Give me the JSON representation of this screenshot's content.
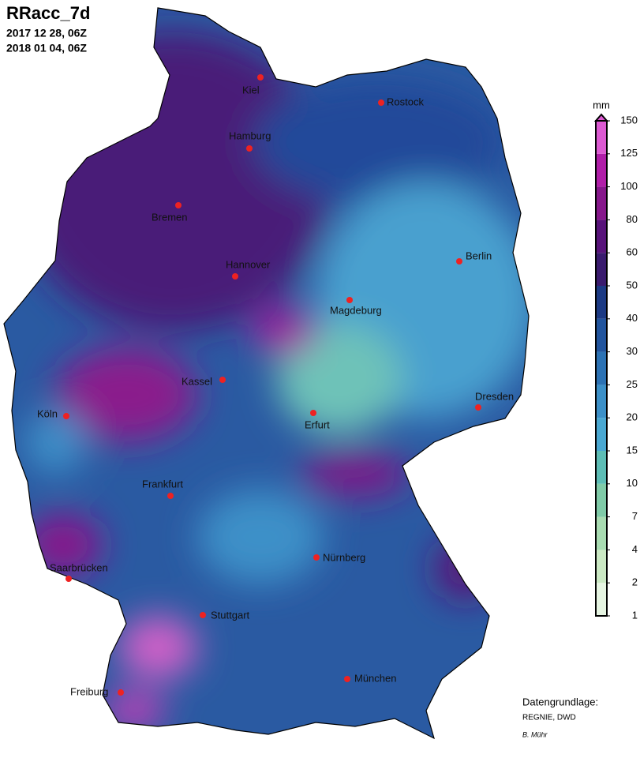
{
  "header": {
    "title": "RRacc_7d",
    "start": "2017 12 28, 06Z",
    "end": "2018 01 04, 06Z"
  },
  "cities": [
    "Kiel",
    "Rostock",
    "Hamburg",
    "Bremen",
    "Hannover",
    "Berlin",
    "Magdeburg",
    "Kassel",
    "Dresden",
    "Köln",
    "Erfurt",
    "Frankfurt",
    "Saarbrücken",
    "Nürnberg",
    "Stuttgart",
    "München",
    "Freiburg"
  ],
  "colorbar": {
    "unit": "mm",
    "levels": [
      1,
      2,
      4,
      7,
      10,
      15,
      20,
      25,
      30,
      40,
      50,
      60,
      80,
      100,
      125,
      150
    ],
    "colors": [
      "#e6f5e2",
      "#cbe9c4",
      "#a9dcb2",
      "#80cba8",
      "#5dbdb5",
      "#4aa8d2",
      "#3c90c8",
      "#2c72b4",
      "#21549d",
      "#1c3a84",
      "#3a1b6e",
      "#58137a",
      "#86178b",
      "#b01ea8",
      "#dc5ad2"
    ]
  },
  "footer": {
    "source_label": "Datengrundlage:",
    "source": "REGNIE, DWD",
    "author": "B. Mühr"
  }
}
